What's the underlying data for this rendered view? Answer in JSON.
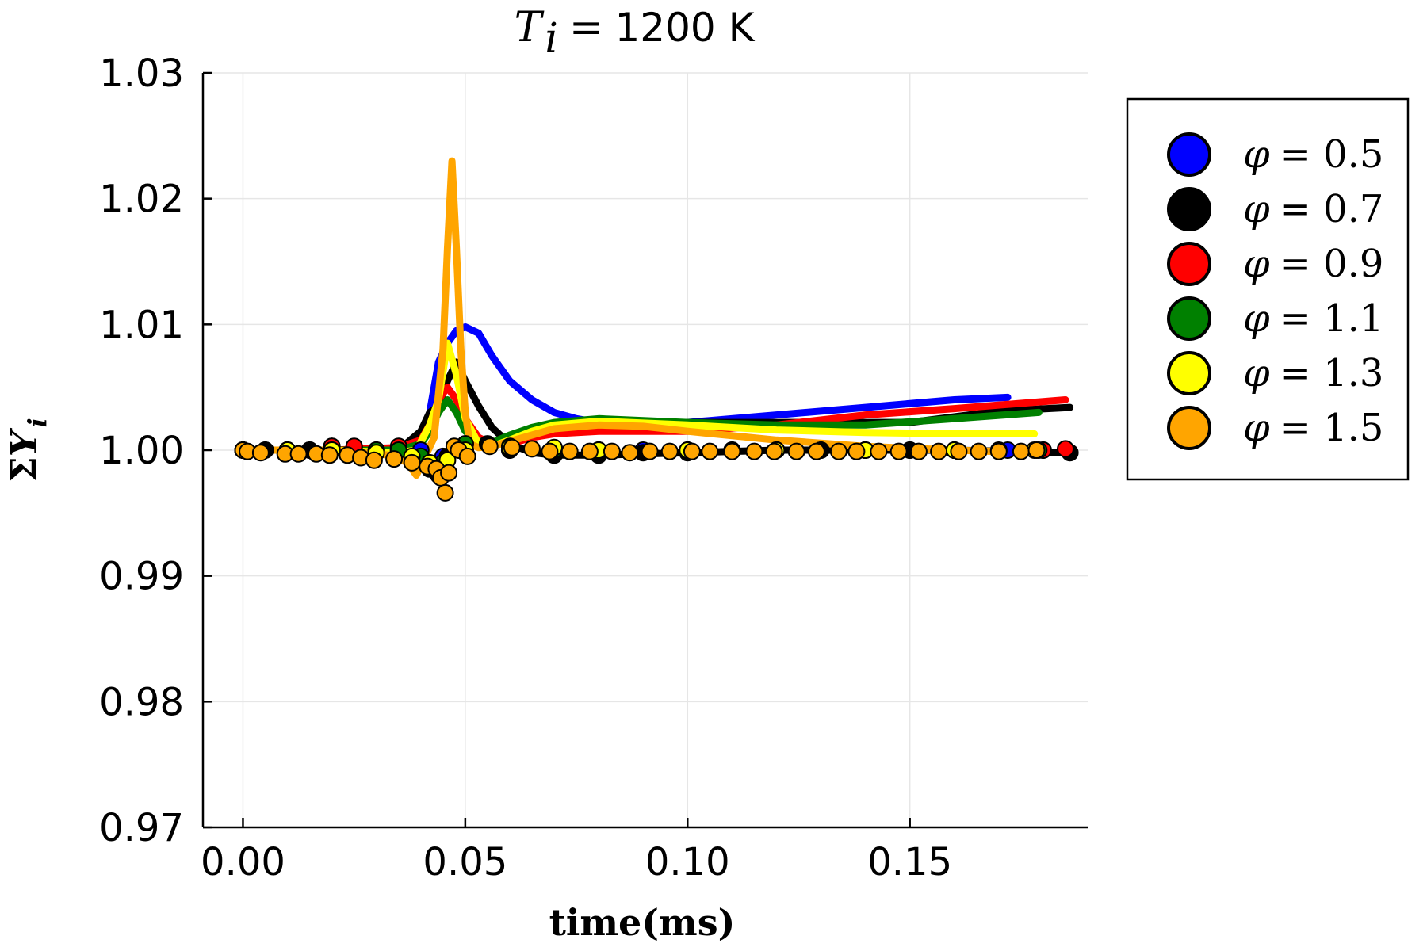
{
  "chart_data": {
    "type": "line",
    "title": {
      "math_symbol": "T",
      "math_subscript": "i",
      "equals": "=",
      "text": "1200 K"
    },
    "xlabel": "time(ms)",
    "ylabel": {
      "sigma": "Σ",
      "symbol": "Y",
      "subscript": "i"
    },
    "xlim": [
      -0.009,
      0.19
    ],
    "ylim": [
      0.97,
      1.03
    ],
    "xticks": [
      0.0,
      0.05,
      0.1,
      0.15
    ],
    "xtick_labels": [
      "0.00",
      "0.05",
      "0.10",
      "0.15"
    ],
    "yticks": [
      0.97,
      0.98,
      0.99,
      1.0,
      1.01,
      1.02,
      1.03
    ],
    "ytick_labels": [
      "0.97",
      "0.98",
      "0.99",
      "1.00",
      "1.01",
      "1.02",
      "1.03"
    ],
    "grid": true,
    "legend_position": "outside-right",
    "legend_symbol": "φ",
    "series": [
      {
        "name": "0.5",
        "color": "#0000ff",
        "line": [
          [
            0,
            1.0
          ],
          [
            0.02,
            1.0
          ],
          [
            0.035,
            1.0
          ],
          [
            0.04,
            1.0005
          ],
          [
            0.042,
            1.003
          ],
          [
            0.044,
            1.007
          ],
          [
            0.046,
            1.0085
          ],
          [
            0.048,
            1.0095
          ],
          [
            0.05,
            1.0098
          ],
          [
            0.053,
            1.0093
          ],
          [
            0.056,
            1.0075
          ],
          [
            0.06,
            1.0055
          ],
          [
            0.065,
            1.004
          ],
          [
            0.07,
            1.003
          ],
          [
            0.075,
            1.0025
          ],
          [
            0.08,
            1.0022
          ],
          [
            0.09,
            1.002
          ],
          [
            0.1,
            1.0022
          ],
          [
            0.12,
            1.0028
          ],
          [
            0.14,
            1.0034
          ],
          [
            0.16,
            1.004
          ],
          [
            0.172,
            1.0042
          ]
        ],
        "markers": [
          [
            0,
            1.0
          ],
          [
            0.005,
            1.0
          ],
          [
            0.01,
            1.0
          ],
          [
            0.015,
            1.0
          ],
          [
            0.02,
            1.0
          ],
          [
            0.025,
            1.0
          ],
          [
            0.03,
            1.0
          ],
          [
            0.035,
            1.0
          ],
          [
            0.04,
            1.0
          ],
          [
            0.045,
            0.9995
          ],
          [
            0.05,
            1.0
          ],
          [
            0.06,
            1.0
          ],
          [
            0.07,
            1.0
          ],
          [
            0.08,
            1.0
          ],
          [
            0.09,
            1.0
          ],
          [
            0.1,
            1.0
          ],
          [
            0.11,
            1.0
          ],
          [
            0.12,
            1.0
          ],
          [
            0.13,
            1.0
          ],
          [
            0.14,
            1.0
          ],
          [
            0.15,
            1.0
          ],
          [
            0.16,
            1.0
          ],
          [
            0.172,
            1.0
          ]
        ]
      },
      {
        "name": "0.7",
        "color": "#000000",
        "line": [
          [
            0,
            1.0
          ],
          [
            0.02,
            1.0
          ],
          [
            0.035,
            1.0
          ],
          [
            0.04,
            1.0015
          ],
          [
            0.042,
            1.003
          ],
          [
            0.044,
            1.0035
          ],
          [
            0.046,
            1.0055
          ],
          [
            0.048,
            1.007
          ],
          [
            0.05,
            1.0055
          ],
          [
            0.053,
            1.0035
          ],
          [
            0.056,
            1.0018
          ],
          [
            0.06,
            1.0005
          ],
          [
            0.065,
            0.9998
          ],
          [
            0.07,
            0.9996
          ],
          [
            0.08,
            0.9996
          ],
          [
            0.1,
            0.9998
          ],
          [
            0.12,
            1.0
          ],
          [
            0.14,
            1.0
          ],
          [
            0.16,
            1.0
          ],
          [
            0.186,
            0.9998
          ]
        ],
        "markers": [
          [
            0,
            1.0
          ],
          [
            0.005,
            1.0
          ],
          [
            0.01,
            1.0
          ],
          [
            0.015,
            1.0
          ],
          [
            0.02,
            1.0003
          ],
          [
            0.025,
            1.0002
          ],
          [
            0.03,
            1.0
          ],
          [
            0.035,
            1.0
          ],
          [
            0.04,
            0.9992
          ],
          [
            0.042,
            0.9985
          ],
          [
            0.044,
            0.998
          ],
          [
            0.046,
            0.9995
          ],
          [
            0.05,
            1.0005
          ],
          [
            0.055,
            1.0005
          ],
          [
            0.06,
            1.0
          ],
          [
            0.07,
            0.9996
          ],
          [
            0.08,
            0.9996
          ],
          [
            0.09,
            0.9998
          ],
          [
            0.1,
            0.9998
          ],
          [
            0.11,
            1.0
          ],
          [
            0.12,
            1.0
          ],
          [
            0.13,
            1.0
          ],
          [
            0.14,
            1.0
          ],
          [
            0.15,
            1.0
          ],
          [
            0.16,
            1.0
          ],
          [
            0.17,
            1.0
          ],
          [
            0.18,
            1.0
          ],
          [
            0.186,
            0.9998
          ]
        ],
        "line_end": [
          [
            0.1,
            1.0022
          ],
          [
            0.13,
            1.0022
          ],
          [
            0.15,
            1.0022
          ],
          [
            0.17,
            1.0031
          ],
          [
            0.186,
            1.0034
          ]
        ]
      },
      {
        "name": "0.9",
        "color": "#ff0000",
        "line": [
          [
            0,
            1.0
          ],
          [
            0.02,
            1.0
          ],
          [
            0.035,
            1.0002
          ],
          [
            0.04,
            1.0008
          ],
          [
            0.042,
            1.002
          ],
          [
            0.044,
            1.004
          ],
          [
            0.046,
            1.005
          ],
          [
            0.048,
            1.004
          ],
          [
            0.05,
            1.0025
          ],
          [
            0.053,
            1.001
          ],
          [
            0.056,
            1.0005
          ],
          [
            0.06,
            1.0005
          ],
          [
            0.065,
            1.001
          ],
          [
            0.07,
            1.0013
          ],
          [
            0.08,
            1.0015
          ],
          [
            0.1,
            1.0015
          ],
          [
            0.12,
            1.002
          ],
          [
            0.14,
            1.0028
          ],
          [
            0.16,
            1.0033
          ],
          [
            0.185,
            1.004
          ]
        ],
        "markers": [
          [
            0,
            1.0
          ],
          [
            0.01,
            1.0
          ],
          [
            0.02,
            1.0003
          ],
          [
            0.025,
            1.0003
          ],
          [
            0.035,
            1.0003
          ],
          [
            0.04,
            0.9995
          ],
          [
            0.045,
            0.9985
          ],
          [
            0.05,
            1.0
          ],
          [
            0.06,
            1.0002
          ],
          [
            0.07,
            1.0
          ],
          [
            0.08,
            1.0
          ],
          [
            0.1,
            1.0
          ],
          [
            0.12,
            1.0
          ],
          [
            0.14,
            1.0
          ],
          [
            0.16,
            1.0
          ],
          [
            0.18,
            1.0
          ],
          [
            0.185,
            1.0001
          ]
        ]
      },
      {
        "name": "1.1",
        "color": "#008000",
        "line": [
          [
            0,
            1.0
          ],
          [
            0.02,
            1.0
          ],
          [
            0.035,
            1.0
          ],
          [
            0.04,
            1.0005
          ],
          [
            0.042,
            1.0015
          ],
          [
            0.044,
            1.003
          ],
          [
            0.046,
            1.004
          ],
          [
            0.048,
            1.003
          ],
          [
            0.05,
            1.0015
          ],
          [
            0.053,
            1.0007
          ],
          [
            0.056,
            1.0006
          ],
          [
            0.06,
            1.0012
          ],
          [
            0.065,
            1.0018
          ],
          [
            0.07,
            1.0022
          ],
          [
            0.08,
            1.0025
          ],
          [
            0.1,
            1.0022
          ],
          [
            0.12,
            1.002
          ],
          [
            0.14,
            1.002
          ],
          [
            0.16,
            1.0025
          ],
          [
            0.179,
            1.003
          ]
        ],
        "markers": [
          [
            0,
            1.0
          ],
          [
            0.01,
            1.0
          ],
          [
            0.02,
            1.0
          ],
          [
            0.03,
            1.0
          ],
          [
            0.035,
            1.0
          ],
          [
            0.04,
            0.9995
          ],
          [
            0.045,
            0.999
          ],
          [
            0.05,
            1.0005
          ],
          [
            0.06,
            1.0003
          ],
          [
            0.07,
            1.0
          ],
          [
            0.08,
            1.0
          ],
          [
            0.1,
            1.0
          ],
          [
            0.12,
            1.0
          ],
          [
            0.14,
            1.0
          ],
          [
            0.16,
            1.0
          ],
          [
            0.179,
            1.0
          ]
        ]
      },
      {
        "name": "1.3",
        "color": "#ffff00",
        "line": [
          [
            0,
            1.0
          ],
          [
            0.02,
            1.0
          ],
          [
            0.035,
            0.9998
          ],
          [
            0.039,
            1.0
          ],
          [
            0.042,
            1.002
          ],
          [
            0.044,
            1.004
          ],
          [
            0.046,
            1.0085
          ],
          [
            0.048,
            1.006
          ],
          [
            0.05,
            1.0025
          ],
          [
            0.053,
            1.0005
          ],
          [
            0.056,
            1.0003
          ],
          [
            0.06,
            1.0008
          ],
          [
            0.065,
            1.0015
          ],
          [
            0.07,
            1.002
          ],
          [
            0.08,
            1.0023
          ],
          [
            0.1,
            1.002
          ],
          [
            0.12,
            1.0016
          ],
          [
            0.14,
            1.0014
          ],
          [
            0.16,
            1.0013
          ],
          [
            0.178,
            1.0013
          ]
        ],
        "markers": [
          [
            0,
            1.0
          ],
          [
            0.01,
            1.0
          ],
          [
            0.02,
            1.0
          ],
          [
            0.03,
            0.9998
          ],
          [
            0.038,
            0.9995
          ],
          [
            0.042,
            0.999
          ],
          [
            0.046,
            0.9992
          ],
          [
            0.05,
            1.0
          ],
          [
            0.06,
            1.0002
          ],
          [
            0.07,
            1.0002
          ],
          [
            0.08,
            1.0
          ],
          [
            0.1,
            1.0
          ],
          [
            0.12,
            1.0
          ],
          [
            0.14,
            1.0
          ],
          [
            0.16,
            1.0
          ],
          [
            0.178,
            1.0
          ]
        ]
      },
      {
        "name": "1.5",
        "color": "#ffa500",
        "line": [
          [
            0,
            1.0
          ],
          [
            0.02,
            1.0
          ],
          [
            0.033,
            0.9996
          ],
          [
            0.037,
            0.999
          ],
          [
            0.039,
            0.998
          ],
          [
            0.041,
            0.9995
          ],
          [
            0.043,
            1.001
          ],
          [
            0.045,
            1.008
          ],
          [
            0.046,
            1.016
          ],
          [
            0.047,
            1.023
          ],
          [
            0.048,
            1.016
          ],
          [
            0.049,
            1.008
          ],
          [
            0.05,
            1.003
          ],
          [
            0.051,
            1.0005
          ],
          [
            0.053,
            1.0002
          ],
          [
            0.056,
            1.0003
          ],
          [
            0.06,
            1.0007
          ],
          [
            0.065,
            1.0012
          ],
          [
            0.07,
            1.0017
          ],
          [
            0.08,
            1.002
          ],
          [
            0.09,
            1.0019
          ],
          [
            0.1,
            1.0015
          ],
          [
            0.12,
            1.0008
          ],
          [
            0.14,
            1.0003
          ],
          [
            0.16,
            1.0
          ],
          [
            0.178,
            0.9998
          ]
        ],
        "markers": [
          [
            0,
            1.0
          ],
          [
            0.001,
            0.9999
          ],
          [
            0.004,
            0.9998
          ],
          [
            0.0095,
            0.9997
          ],
          [
            0.0125,
            0.9997
          ],
          [
            0.0165,
            0.9997
          ],
          [
            0.0195,
            0.9996
          ],
          [
            0.0235,
            0.9996
          ],
          [
            0.0265,
            0.9994
          ],
          [
            0.0295,
            0.9992
          ],
          [
            0.034,
            0.9993
          ],
          [
            0.038,
            0.999
          ],
          [
            0.0415,
            0.9987
          ],
          [
            0.0435,
            0.9985
          ],
          [
            0.0445,
            0.9978
          ],
          [
            0.0455,
            0.9966
          ],
          [
            0.0463,
            0.9982
          ],
          [
            0.0475,
            1.0003
          ],
          [
            0.0485,
            1.0
          ],
          [
            0.0505,
            0.9995
          ],
          [
            0.0555,
            1.0003
          ],
          [
            0.0605,
            1.0002
          ],
          [
            0.065,
            1.0001
          ],
          [
            0.069,
            0.9999
          ],
          [
            0.0735,
            0.9999
          ],
          [
            0.078,
            0.9999
          ],
          [
            0.083,
            0.9999
          ],
          [
            0.087,
            0.9998
          ],
          [
            0.0915,
            0.9999
          ],
          [
            0.096,
            0.9999
          ],
          [
            0.101,
            0.9999
          ],
          [
            0.105,
            0.9999
          ],
          [
            0.11,
            0.9999
          ],
          [
            0.115,
            0.9999
          ],
          [
            0.1195,
            0.9999
          ],
          [
            0.1245,
            0.9999
          ],
          [
            0.129,
            0.9999
          ],
          [
            0.134,
            0.9999
          ],
          [
            0.138,
            0.9999
          ],
          [
            0.143,
            0.9999
          ],
          [
            0.1475,
            0.9999
          ],
          [
            0.152,
            0.9999
          ],
          [
            0.1565,
            0.9999
          ],
          [
            0.161,
            0.9999
          ],
          [
            0.1655,
            0.9999
          ],
          [
            0.17,
            0.9999
          ],
          [
            0.175,
            0.9999
          ],
          [
            0.1785,
            1.0
          ]
        ]
      }
    ]
  }
}
